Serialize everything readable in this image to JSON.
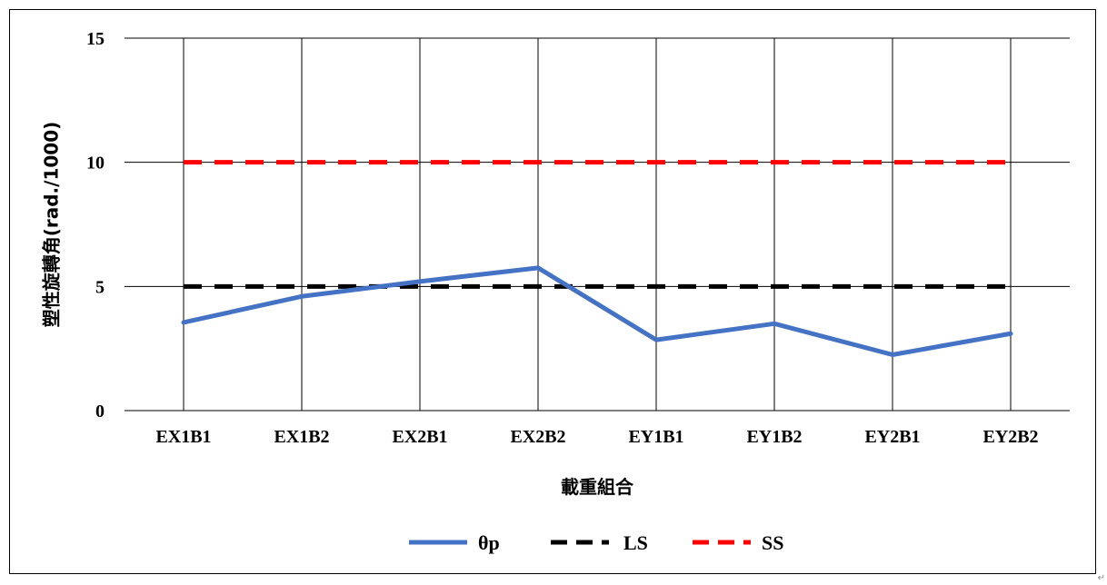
{
  "chart_data": {
    "type": "line",
    "categories": [
      "EX1B1",
      "EX1B2",
      "EX2B1",
      "EX2B2",
      "EY1B1",
      "EY1B2",
      "EY2B1",
      "EY2B2"
    ],
    "series": [
      {
        "name": "θp",
        "values": [
          3.55,
          4.6,
          5.2,
          5.75,
          2.85,
          3.5,
          2.25,
          3.1
        ],
        "color": "#4472C4",
        "style": "solid"
      },
      {
        "name": "LS",
        "values": [
          5,
          5,
          5,
          5,
          5,
          5,
          5,
          5
        ],
        "color": "#000000",
        "style": "dashed"
      },
      {
        "name": "SS",
        "values": [
          10,
          10,
          10,
          10,
          10,
          10,
          10,
          10
        ],
        "color": "#FF0000",
        "style": "dashed"
      }
    ],
    "xlabel": "載重組合",
    "ylabel": "塑性旋轉角(rad./1000)",
    "ylim": [
      0,
      15
    ],
    "yticks": [
      0,
      5,
      10,
      15
    ],
    "grid": "both",
    "legend_position": "bottom"
  }
}
